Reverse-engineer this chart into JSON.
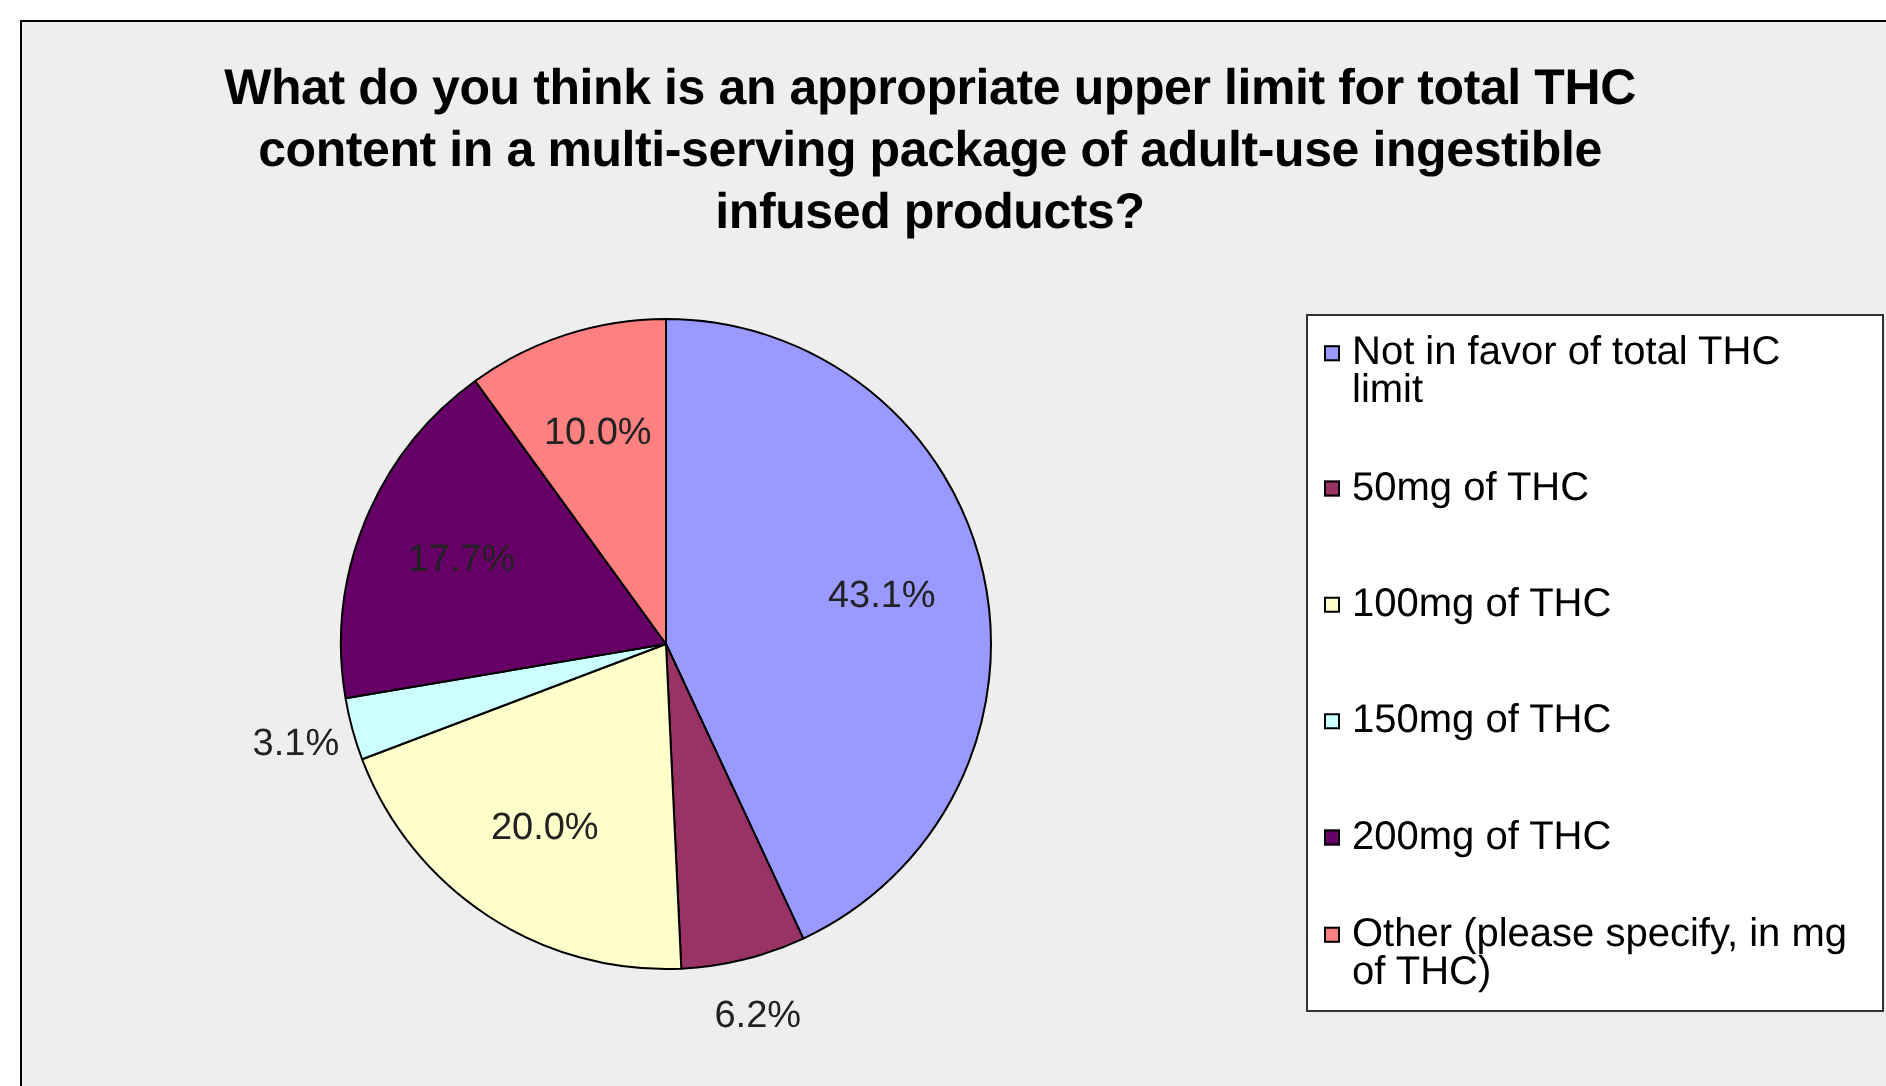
{
  "chart_data": {
    "type": "pie",
    "title": "What do you think is an appropriate upper limit for total THC content in a multi-serving package of adult-use ingestible infused products?",
    "categories": [
      "Not in favor of total THC limit",
      "50mg of THC",
      "100mg of THC",
      "150mg of THC",
      "200mg of THC",
      "Other (please specify, in mg of THC)"
    ],
    "values": [
      43.1,
      6.2,
      20.0,
      3.1,
      17.7,
      10.0
    ],
    "colors": [
      "#9999ff",
      "#993366",
      "#ffffcc",
      "#ccffff",
      "#660066",
      "#ff8080"
    ],
    "value_labels": [
      "43.1%",
      "6.2%",
      "20.0%",
      "3.1%",
      "17.7%",
      "10.0%"
    ],
    "legend": "right"
  }
}
